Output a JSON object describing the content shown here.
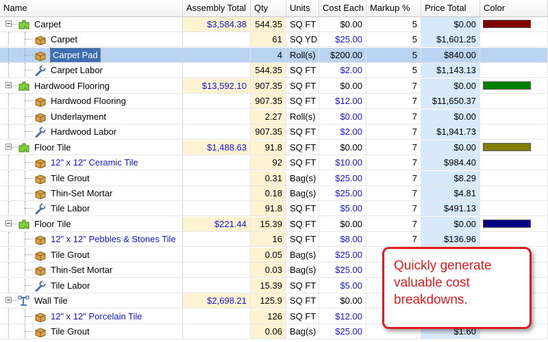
{
  "columns": {
    "name": "Name",
    "assembly_total": "Assembly Total",
    "qty": "Qty",
    "units": "Units",
    "cost_each": "Cost Each",
    "markup": "Markup %",
    "price_total": "Price Total",
    "color": "Color"
  },
  "rows": [
    {
      "level": 0,
      "kind": "group",
      "icon": "assembly-green-icon",
      "name": "Carpet",
      "assembly_total": "$3,584.38",
      "qty": "544.35",
      "units": "SQ FT",
      "cost_each": "$0.00",
      "markup": "5",
      "price_total": "$0.00",
      "swatch": "#800000"
    },
    {
      "level": 1,
      "kind": "material",
      "icon": "material-box-icon",
      "name": "Carpet",
      "qty": "61",
      "units": "SQ YD",
      "cost_each": "$25.00",
      "markup": "5",
      "price_total": "$1,601.25",
      "blue_cost": true
    },
    {
      "level": 1,
      "kind": "material",
      "icon": "material-box-icon",
      "name": "Carpet Pad",
      "qty": "4",
      "units": "Roll(s)",
      "cost_each": "$200.00",
      "markup": "5",
      "price_total": "$840.00",
      "selected": true
    },
    {
      "level": 1,
      "kind": "labor",
      "icon": "wrench-icon",
      "name": "Carpet Labor",
      "qty": "544.35",
      "units": "SQ FT",
      "cost_each": "$2.00",
      "markup": "5",
      "price_total": "$1,143.13",
      "blue_cost": true
    },
    {
      "level": 0,
      "kind": "group",
      "icon": "assembly-green-icon",
      "name": "Hardwood Flooring",
      "assembly_total": "$13,592.10",
      "qty": "907.35",
      "units": "SQ FT",
      "cost_each": "$0.00",
      "markup": "7",
      "price_total": "$0.00",
      "swatch": "#008000"
    },
    {
      "level": 1,
      "kind": "material",
      "icon": "material-box-icon",
      "name": "Hardwood Flooring",
      "qty": "907.35",
      "units": "SQ FT",
      "cost_each": "$12.00",
      "markup": "7",
      "price_total": "$11,650.37",
      "blue_cost": true
    },
    {
      "level": 1,
      "kind": "material",
      "icon": "material-box-icon",
      "name": "Underlayment",
      "qty": "2.27",
      "units": "Roll(s)",
      "cost_each": "$0.00",
      "markup": "7",
      "price_total": "$0.00",
      "blue_cost": true
    },
    {
      "level": 1,
      "kind": "labor",
      "icon": "wrench-icon",
      "name": "Hardwood Labor",
      "qty": "907.35",
      "units": "SQ FT",
      "cost_each": "$2.00",
      "markup": "7",
      "price_total": "$1,941.73",
      "blue_cost": true
    },
    {
      "level": 0,
      "kind": "group",
      "icon": "assembly-green-icon",
      "name": "Floor Tile",
      "assembly_total": "$1,488.63",
      "qty": "91.8",
      "units": "SQ FT",
      "cost_each": "$0.00",
      "markup": "7",
      "price_total": "$0.00",
      "swatch": "#808000"
    },
    {
      "level": 1,
      "kind": "material",
      "icon": "material-box-icon",
      "name": "12\" x 12\" Ceramic Tile",
      "blue_name": true,
      "qty": "92",
      "units": "SQ FT",
      "cost_each": "$10.00",
      "markup": "7",
      "price_total": "$984.40",
      "blue_cost": true
    },
    {
      "level": 1,
      "kind": "material",
      "icon": "material-box-icon",
      "name": "Tile Grout",
      "qty": "0.31",
      "units": "Bag(s)",
      "cost_each": "$25.00",
      "markup": "7",
      "price_total": "$8.29",
      "blue_cost": true
    },
    {
      "level": 1,
      "kind": "material",
      "icon": "material-box-icon",
      "name": "Thin-Set Mortar",
      "qty": "0.18",
      "units": "Bag(s)",
      "cost_each": "$25.00",
      "markup": "7",
      "price_total": "$4.81",
      "blue_cost": true
    },
    {
      "level": 1,
      "kind": "labor",
      "icon": "wrench-icon",
      "name": "Tile Labor",
      "qty": "91.8",
      "units": "SQ FT",
      "cost_each": "$5.00",
      "markup": "7",
      "price_total": "$491.13",
      "blue_cost": true
    },
    {
      "level": 0,
      "kind": "group",
      "icon": "assembly-green-icon",
      "name": "Floor Tile",
      "assembly_total": "$221.44",
      "qty": "15.39",
      "units": "SQ FT",
      "cost_each": "$0.00",
      "markup": "7",
      "price_total": "$0.00",
      "swatch": "#000080"
    },
    {
      "level": 1,
      "kind": "material",
      "icon": "material-box-icon",
      "name": "12\" x 12\" Pebbles & Stones Tile",
      "blue_name": true,
      "qty": "16",
      "units": "SQ FT",
      "cost_each": "$8.00",
      "markup": "7",
      "price_total": "$136.96",
      "blue_cost": true
    },
    {
      "level": 1,
      "kind": "material",
      "icon": "material-box-icon",
      "name": "Tile Grout",
      "qty": "0.05",
      "units": "Bag(s)",
      "cost_each": "$25.00",
      "markup": "",
      "price_total": "",
      "blue_cost": true
    },
    {
      "level": 1,
      "kind": "material",
      "icon": "material-box-icon",
      "name": "Thin-Set Mortar",
      "qty": "0.03",
      "units": "Bag(s)",
      "cost_each": "$25.00",
      "markup": "",
      "price_total": "",
      "blue_cost": true
    },
    {
      "level": 1,
      "kind": "labor",
      "icon": "wrench-icon",
      "name": "Tile Labor",
      "qty": "15.39",
      "units": "SQ FT",
      "cost_each": "$5.00",
      "markup": "",
      "price_total": "",
      "blue_cost": true
    },
    {
      "level": 0,
      "kind": "group",
      "icon": "assembly-blue-icon",
      "name": "Wall Tile",
      "assembly_total": "$2,698.21",
      "qty": "125.9",
      "units": "SQ FT",
      "cost_each": "$0.00",
      "markup": "",
      "price_total": ""
    },
    {
      "level": 1,
      "kind": "material",
      "icon": "material-box-icon",
      "name": "12\" x 12\" Porcelain Tile",
      "blue_name": true,
      "qty": "126",
      "units": "SQ FT",
      "cost_each": "$12.00",
      "markup": "",
      "price_total": "",
      "blue_cost": true
    },
    {
      "level": 1,
      "kind": "material",
      "icon": "material-box-icon",
      "name": "Tile Grout",
      "qty": "0.06",
      "units": "Bag(s)",
      "cost_each": "$25.00",
      "markup": "",
      "price_total": "$1.60",
      "blue_cost": true
    }
  ],
  "callout": {
    "text": "Quickly generate valuable cost breakdowns.",
    "color": "#e01b1b"
  }
}
